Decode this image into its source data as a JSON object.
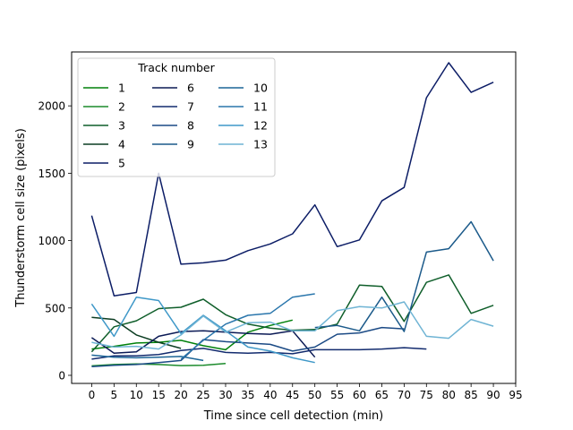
{
  "chart_data": {
    "type": "line",
    "title": "",
    "xlabel": "Time since cell detection (min)",
    "ylabel": "Thunderstorm cell size (pixels)",
    "xlim": [
      -4.5,
      95
    ],
    "ylim": [
      -60,
      2400
    ],
    "xticks": [
      0,
      5,
      10,
      15,
      20,
      25,
      30,
      35,
      40,
      45,
      50,
      55,
      60,
      65,
      70,
      75,
      80,
      85,
      90,
      95
    ],
    "yticks": [
      0,
      500,
      1000,
      1500,
      2000
    ],
    "legend": {
      "title": "Track number",
      "position": "top-left",
      "columns": 3
    },
    "grid": false,
    "series": [
      {
        "name": "1",
        "color": "#00800a",
        "x": [
          0,
          5,
          10,
          15,
          20,
          25,
          30,
          35,
          40,
          45
        ],
        "y": [
          195,
          215,
          240,
          245,
          260,
          220,
          190,
          320,
          370,
          410
        ]
      },
      {
        "name": "2",
        "color": "#1c8b2c",
        "x": [
          0,
          5,
          10,
          15,
          20,
          25,
          30
        ],
        "y": [
          70,
          80,
          85,
          80,
          72,
          75,
          88
        ]
      },
      {
        "name": "3",
        "color": "#0f5e2a",
        "x": [
          0,
          5,
          10,
          15,
          20,
          25,
          30,
          35,
          40,
          45,
          50,
          55,
          60,
          65,
          70,
          75,
          80,
          85,
          90
        ],
        "y": [
          175,
          360,
          405,
          495,
          505,
          565,
          450,
          380,
          350,
          335,
          340,
          380,
          670,
          660,
          400,
          690,
          745,
          460,
          520
        ]
      },
      {
        "name": "4",
        "color": "#0c3d22",
        "x": [
          0,
          5,
          10,
          15,
          20
        ],
        "y": [
          430,
          415,
          300,
          245,
          200
        ]
      },
      {
        "name": "5",
        "color": "#0c1d66",
        "x": [
          0,
          5,
          10,
          15,
          20,
          25,
          30,
          35,
          40,
          45,
          50,
          55,
          60,
          65,
          70,
          75,
          80,
          85,
          90
        ],
        "y": [
          1185,
          590,
          615,
          1500,
          825,
          835,
          855,
          925,
          975,
          1050,
          1265,
          955,
          1005,
          1295,
          1395,
          2060,
          2320,
          2100,
          2175
        ]
      },
      {
        "name": "6",
        "color": "#0b1a55",
        "x": [
          0,
          5,
          10,
          15,
          20,
          25,
          30,
          35,
          40,
          45,
          50
        ],
        "y": [
          280,
          165,
          175,
          290,
          325,
          330,
          320,
          310,
          305,
          330,
          135
        ]
      },
      {
        "name": "7",
        "color": "#122b6e",
        "x": [
          0,
          5,
          10,
          15,
          20,
          25,
          30,
          35,
          40,
          45,
          50,
          55,
          60,
          65,
          70,
          75
        ],
        "y": [
          120,
          145,
          145,
          155,
          185,
          200,
          170,
          165,
          170,
          160,
          190,
          190,
          190,
          195,
          205,
          195
        ]
      },
      {
        "name": "8",
        "color": "#1b4a85",
        "x": [
          0,
          5,
          10,
          15,
          20,
          25,
          30,
          35,
          40,
          45,
          50,
          55,
          60,
          65,
          70
        ],
        "y": [
          65,
          75,
          80,
          95,
          110,
          265,
          250,
          240,
          230,
          180,
          210,
          305,
          315,
          355,
          345
        ]
      },
      {
        "name": "9",
        "color": "#1b5a8a",
        "x": [
          50,
          55,
          60,
          65,
          70,
          75,
          80,
          85,
          90
        ],
        "y": [
          355,
          370,
          330,
          580,
          325,
          915,
          940,
          1140,
          850
        ]
      },
      {
        "name": "10",
        "color": "#1c6597",
        "x": [
          0,
          5,
          10,
          15,
          20,
          25
        ],
        "y": [
          150,
          135,
          130,
          135,
          140,
          110
        ]
      },
      {
        "name": "11",
        "color": "#2a76ac",
        "x": [
          20,
          25,
          30,
          35,
          40,
          45,
          50
        ],
        "y": [
          120,
          260,
          380,
          445,
          460,
          580,
          605
        ]
      },
      {
        "name": "12",
        "color": "#3f98c8",
        "x": [
          0,
          5,
          10,
          15,
          20,
          25,
          30,
          35,
          40,
          45,
          50
        ],
        "y": [
          530,
          290,
          580,
          555,
          310,
          445,
          330,
          210,
          180,
          130,
          95
        ]
      },
      {
        "name": "13",
        "color": "#6fb4d4",
        "x": [
          0,
          5,
          10,
          15,
          20,
          25,
          30,
          35,
          40,
          45,
          50,
          55,
          60,
          65,
          70,
          75,
          80,
          85,
          90
        ],
        "y": [
          245,
          210,
          215,
          195,
          300,
          440,
          320,
          390,
          395,
          330,
          330,
          480,
          510,
          500,
          545,
          290,
          275,
          415,
          365
        ]
      }
    ]
  }
}
